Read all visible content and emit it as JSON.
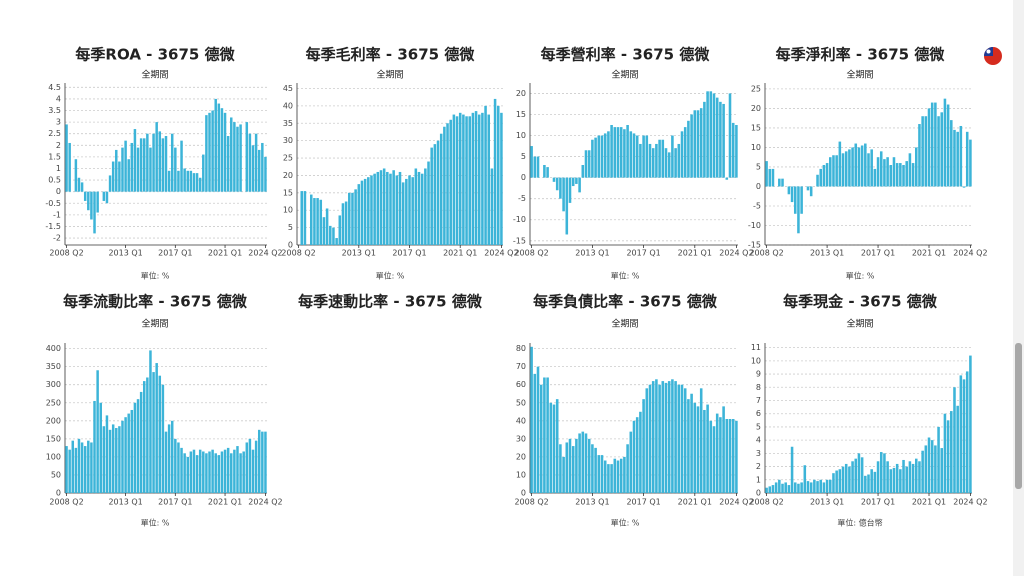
{
  "chart_data": [
    {
      "type": "bar",
      "title": "每季ROA - 3675 德微",
      "subtitle": "全期間",
      "unit": "單位: %",
      "color": "#3cb4d8",
      "grid": true,
      "categories": [
        "2008 Q2",
        null,
        null,
        null,
        null,
        null,
        null,
        null,
        null,
        null,
        null,
        null,
        null,
        null,
        null,
        null,
        null,
        null,
        null,
        "2013 Q1",
        null,
        null,
        null,
        null,
        null,
        null,
        null,
        null,
        null,
        null,
        null,
        null,
        null,
        null,
        null,
        "2017 Q1",
        null,
        null,
        null,
        null,
        null,
        null,
        null,
        null,
        null,
        null,
        null,
        null,
        null,
        null,
        null,
        "2021 Q1",
        null,
        null,
        null,
        null,
        null,
        null,
        null,
        null,
        null,
        null,
        null,
        null,
        "2024 Q2"
      ],
      "values": [
        2.9,
        2.1,
        null,
        1.4,
        0.6,
        0.4,
        -0.4,
        -0.8,
        -1.2,
        -1.8,
        -0.9,
        null,
        -0.4,
        -0.5,
        0.7,
        1.3,
        1.8,
        1.3,
        1.9,
        2.2,
        1.4,
        2.1,
        2.7,
        1.9,
        2.3,
        2.3,
        2.5,
        1.9,
        2.5,
        3.0,
        2.6,
        2.3,
        2.4,
        0.9,
        2.5,
        1.9,
        0.9,
        2.2,
        1.0,
        0.9,
        0.9,
        0.8,
        0.8,
        0.6,
        1.6,
        3.3,
        3.4,
        3.5,
        4.0,
        3.8,
        3.6,
        3.4,
        2.4,
        3.2,
        3.0,
        2.8,
        2.9,
        null,
        3.0,
        2.5,
        2.0,
        2.5,
        1.8,
        2.1,
        1.5
      ],
      "ylim": [
        -2.3,
        4.6
      ],
      "yticks": [
        -2,
        -1.5,
        -1,
        -0.5,
        0,
        0.5,
        1,
        1.5,
        2,
        2.5,
        3,
        3.5,
        4,
        4.5
      ]
    },
    {
      "type": "bar",
      "title": "每季毛利率 - 3675 德微",
      "subtitle": "全期間",
      "unit": "單位: %",
      "color": "#3cb4d8",
      "grid": true,
      "categories": [
        "2008 Q2",
        null,
        null,
        null,
        null,
        null,
        null,
        null,
        null,
        null,
        null,
        null,
        null,
        null,
        null,
        null,
        null,
        null,
        null,
        "2013 Q1",
        null,
        null,
        null,
        null,
        null,
        null,
        null,
        null,
        null,
        null,
        null,
        null,
        null,
        null,
        null,
        "2017 Q1",
        null,
        null,
        null,
        null,
        null,
        null,
        null,
        null,
        null,
        null,
        null,
        null,
        null,
        null,
        null,
        "2021 Q1",
        null,
        null,
        null,
        null,
        null,
        null,
        null,
        null,
        null,
        null,
        null,
        null,
        "2024 Q2"
      ],
      "values": [
        null,
        15.5,
        15.5,
        null,
        14.5,
        13.5,
        13.5,
        13,
        8,
        10.5,
        5.5,
        5,
        2,
        8.5,
        12,
        12.5,
        15,
        15,
        16,
        17.5,
        18.5,
        19,
        19.5,
        20,
        20.5,
        21,
        21.5,
        22,
        21,
        20.5,
        21.5,
        20,
        21,
        18,
        19,
        20,
        19.5,
        22,
        21,
        20.5,
        22,
        24,
        28,
        29,
        30,
        32,
        34,
        35,
        36,
        37.5,
        37,
        38,
        37.5,
        37,
        37,
        38,
        38.5,
        37.5,
        38,
        40,
        37.5,
        22,
        42,
        40,
        38
      ],
      "ylim": [
        0,
        46
      ],
      "yticks": [
        0,
        5,
        10,
        15,
        20,
        25,
        30,
        35,
        40,
        45
      ]
    },
    {
      "type": "bar",
      "title": "每季營利率 - 3675 德微",
      "subtitle": "全期間",
      "unit": "單位: %",
      "color": "#3cb4d8",
      "grid": true,
      "categories": [
        "2008 Q2",
        null,
        null,
        null,
        null,
        null,
        null,
        null,
        null,
        null,
        null,
        null,
        null,
        null,
        null,
        null,
        null,
        null,
        null,
        "2013 Q1",
        null,
        null,
        null,
        null,
        null,
        null,
        null,
        null,
        null,
        null,
        null,
        null,
        null,
        null,
        null,
        "2017 Q1",
        null,
        null,
        null,
        null,
        null,
        null,
        null,
        null,
        null,
        null,
        null,
        null,
        null,
        null,
        null,
        "2021 Q1",
        null,
        null,
        null,
        null,
        null,
        null,
        null,
        null,
        null,
        null,
        null,
        null,
        "2024 Q2"
      ],
      "values": [
        7.5,
        5,
        5,
        null,
        3,
        2.5,
        null,
        -1,
        -3,
        -5,
        -8,
        -13.5,
        -6,
        -2,
        -1.5,
        -3.5,
        3,
        6.5,
        6.5,
        9,
        9.5,
        10,
        10,
        10.5,
        11,
        12.5,
        12,
        12,
        12,
        11.5,
        12.5,
        11,
        10.5,
        10,
        8,
        10,
        10,
        8,
        7,
        8,
        9,
        9,
        7,
        6,
        10,
        7,
        8,
        11,
        12,
        13.5,
        15,
        16,
        16,
        16.5,
        18,
        20.5,
        20.5,
        20,
        19,
        18,
        17.5,
        -0.5,
        20,
        13,
        12.5
      ],
      "ylim": [
        -16,
        22
      ],
      "yticks": [
        -15,
        -10,
        -5,
        0,
        5,
        10,
        15,
        20
      ]
    },
    {
      "type": "bar",
      "title": "每季淨利率 - 3675 德微",
      "subtitle": "全期間",
      "unit": "單位: %",
      "color": "#3cb4d8",
      "grid": true,
      "categories": [
        "2008 Q2",
        null,
        null,
        null,
        null,
        null,
        null,
        null,
        null,
        null,
        null,
        null,
        null,
        null,
        null,
        null,
        null,
        null,
        null,
        "2013 Q1",
        null,
        null,
        null,
        null,
        null,
        null,
        null,
        null,
        null,
        null,
        null,
        null,
        null,
        null,
        null,
        "2017 Q1",
        null,
        null,
        null,
        null,
        null,
        null,
        null,
        null,
        null,
        null,
        null,
        null,
        null,
        null,
        null,
        "2021 Q1",
        null,
        null,
        null,
        null,
        null,
        null,
        null,
        null,
        null,
        null,
        null,
        null,
        "2024 Q2"
      ],
      "values": [
        6.5,
        4.5,
        4.5,
        null,
        2,
        2,
        0,
        -2,
        -4,
        -7,
        -12,
        -7,
        null,
        -1,
        -2.5,
        0,
        3,
        4.5,
        5.5,
        6,
        7.5,
        8,
        8,
        11.5,
        8.5,
        9,
        9.5,
        10,
        11,
        10,
        10.5,
        11,
        8.5,
        9.5,
        4.5,
        7.5,
        9,
        7,
        7.5,
        5.5,
        7.5,
        6,
        6,
        5.5,
        6.5,
        8.5,
        6,
        10,
        16,
        18,
        18,
        20,
        21.5,
        21.5,
        18,
        19,
        22.5,
        21,
        17,
        14.5,
        14,
        15.5,
        -0.3,
        14,
        12
      ],
      "ylim": [
        -15,
        26
      ],
      "yticks": [
        -15,
        -10,
        -5,
        0,
        5,
        10,
        15,
        20,
        25
      ]
    },
    {
      "type": "bar",
      "title": "每季流動比率 - 3675 德微",
      "subtitle": "全期間",
      "unit": "單位: %",
      "color": "#3cb4d8",
      "grid": true,
      "categories": [
        "2008 Q2",
        null,
        null,
        null,
        null,
        null,
        null,
        null,
        null,
        null,
        null,
        null,
        null,
        null,
        null,
        null,
        null,
        null,
        null,
        "2013 Q1",
        null,
        null,
        null,
        null,
        null,
        null,
        null,
        null,
        null,
        null,
        null,
        null,
        null,
        null,
        null,
        "2017 Q1",
        null,
        null,
        null,
        null,
        null,
        null,
        null,
        null,
        null,
        null,
        null,
        null,
        null,
        null,
        null,
        "2021 Q1",
        null,
        null,
        null,
        null,
        null,
        null,
        null,
        null,
        null,
        null,
        null,
        null,
        "2024 Q2"
      ],
      "values": [
        130,
        120,
        145,
        125,
        150,
        140,
        130,
        145,
        140,
        255,
        340,
        250,
        185,
        215,
        175,
        190,
        180,
        185,
        200,
        210,
        220,
        230,
        250,
        260,
        280,
        310,
        320,
        395,
        335,
        360,
        325,
        300,
        170,
        190,
        200,
        150,
        140,
        125,
        110,
        100,
        115,
        120,
        105,
        120,
        115,
        110,
        115,
        120,
        110,
        105,
        115,
        120,
        125,
        110,
        120,
        130,
        110,
        115,
        140,
        150,
        120,
        145,
        175,
        170,
        170
      ],
      "ylim": [
        0,
        410
      ],
      "yticks": [
        0,
        50,
        100,
        150,
        200,
        250,
        300,
        350,
        400
      ]
    },
    {
      "type": "bar",
      "title": "每季速動比率 - 3675 德微"
    },
    {
      "type": "bar",
      "title": "每季負債比率 - 3675 德微",
      "subtitle": "全期間",
      "unit": "單位: %",
      "color": "#3cb4d8",
      "grid": true,
      "categories": [
        "2008 Q2",
        null,
        null,
        null,
        null,
        null,
        null,
        null,
        null,
        null,
        null,
        null,
        null,
        null,
        null,
        null,
        null,
        null,
        null,
        "2013 Q1",
        null,
        null,
        null,
        null,
        null,
        null,
        null,
        null,
        null,
        null,
        null,
        null,
        null,
        null,
        null,
        "2017 Q1",
        null,
        null,
        null,
        null,
        null,
        null,
        null,
        null,
        null,
        null,
        null,
        null,
        null,
        null,
        null,
        "2021 Q1",
        null,
        null,
        null,
        null,
        null,
        null,
        null,
        null,
        null,
        null,
        null,
        null,
        "2024 Q2"
      ],
      "values": [
        81,
        66,
        70,
        60,
        64,
        64,
        50,
        49,
        52,
        27,
        20,
        28,
        30,
        26,
        30,
        33,
        34,
        33,
        30,
        27,
        25,
        21,
        21,
        18,
        16,
        16,
        19,
        18,
        19,
        20,
        27,
        34,
        40,
        42,
        45,
        52,
        58,
        60,
        62,
        63,
        60,
        62,
        61,
        62,
        63,
        62,
        60,
        60,
        58,
        52,
        55,
        50,
        48,
        58,
        46,
        49,
        40,
        37,
        44,
        42,
        48,
        41,
        41,
        41,
        40
      ],
      "ylim": [
        0,
        82
      ],
      "yticks": [
        0,
        10,
        20,
        30,
        40,
        50,
        60,
        70,
        80
      ]
    },
    {
      "type": "bar",
      "title": "每季現金 - 3675 德微",
      "subtitle": "全期間",
      "unit": "單位: 億台幣",
      "color": "#3cb4d8",
      "grid": true,
      "categories": [
        "2008 Q2",
        null,
        null,
        null,
        null,
        null,
        null,
        null,
        null,
        null,
        null,
        null,
        null,
        null,
        null,
        null,
        null,
        null,
        null,
        "2013 Q1",
        null,
        null,
        null,
        null,
        null,
        null,
        null,
        null,
        null,
        null,
        null,
        null,
        null,
        null,
        null,
        "2017 Q1",
        null,
        null,
        null,
        null,
        null,
        null,
        null,
        null,
        null,
        null,
        null,
        null,
        null,
        null,
        null,
        "2021 Q1",
        null,
        null,
        null,
        null,
        null,
        null,
        null,
        null,
        null,
        null,
        null,
        null,
        "2024 Q2"
      ],
      "values": [
        0.4,
        0.5,
        0.6,
        0.8,
        1.0,
        0.7,
        0.8,
        0.6,
        3.5,
        0.8,
        0.7,
        0.8,
        2.1,
        0.9,
        0.8,
        1.0,
        0.9,
        1.0,
        0.8,
        1.0,
        1.0,
        1.5,
        1.7,
        1.8,
        2.0,
        2.2,
        2.0,
        2.4,
        2.6,
        3.0,
        2.7,
        1.3,
        1.4,
        1.8,
        1.6,
        2.4,
        3.1,
        3.0,
        2.4,
        1.8,
        1.9,
        2.2,
        1.8,
        2.5,
        2.0,
        2.4,
        2.2,
        2.6,
        2.4,
        3.2,
        3.6,
        4.2,
        4.0,
        3.6,
        5.0,
        3.4,
        6.0,
        5.5,
        6.2,
        8.0,
        6.6,
        8.9,
        8.6,
        9.2,
        10.4
      ],
      "ylim": [
        0,
        11.2
      ],
      "yticks": [
        0,
        1,
        2,
        3,
        4,
        5,
        6,
        7,
        8,
        9,
        10,
        11
      ]
    }
  ]
}
